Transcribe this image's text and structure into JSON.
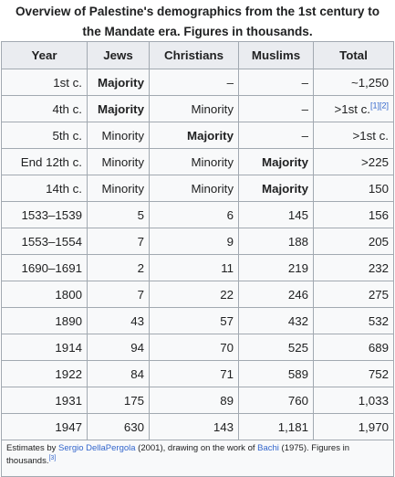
{
  "caption": {
    "line1": "Overview of Palestine's demographics from the 1st century to",
    "line2": "the Mandate era. Figures in thousands."
  },
  "headers": [
    "Year",
    "Jews",
    "Christians",
    "Muslims",
    "Total"
  ],
  "rows": [
    {
      "year": "1st c.",
      "jews": "Majority",
      "christians": "–",
      "muslims": "–",
      "total": "~1,250",
      "cite": ""
    },
    {
      "year": "4th c.",
      "jews": "Majority",
      "christians": "Minority",
      "muslims": "–",
      "total": ">1st c.",
      "cite": "[1][2]"
    },
    {
      "year": "5th c.",
      "jews": "Minority",
      "christians": "Majority",
      "muslims": "–",
      "total": ">1st c.",
      "cite": ""
    },
    {
      "year": "End 12th c.",
      "jews": "Minority",
      "christians": "Minority",
      "muslims": "Majority",
      "total": ">225",
      "cite": ""
    },
    {
      "year": "14th c.",
      "jews": "Minority",
      "christians": "Minority",
      "muslims": "Majority",
      "total": "150",
      "cite": ""
    },
    {
      "year": "1533–1539",
      "jews": "5",
      "christians": "6",
      "muslims": "145",
      "total": "156",
      "cite": ""
    },
    {
      "year": "1553–1554",
      "jews": "7",
      "christians": "9",
      "muslims": "188",
      "total": "205",
      "cite": ""
    },
    {
      "year": "1690–1691",
      "jews": "2",
      "christians": "11",
      "muslims": "219",
      "total": "232",
      "cite": ""
    },
    {
      "year": "1800",
      "jews": "7",
      "christians": "22",
      "muslims": "246",
      "total": "275",
      "cite": ""
    },
    {
      "year": "1890",
      "jews": "43",
      "christians": "57",
      "muslims": "432",
      "total": "532",
      "cite": ""
    },
    {
      "year": "1914",
      "jews": "94",
      "christians": "70",
      "muslims": "525",
      "total": "689",
      "cite": ""
    },
    {
      "year": "1922",
      "jews": "84",
      "christians": "71",
      "muslims": "589",
      "total": "752",
      "cite": ""
    },
    {
      "year": "1931",
      "jews": "175",
      "christians": "89",
      "muslims": "760",
      "total": "1,033",
      "cite": ""
    },
    {
      "year": "1947",
      "jews": "630",
      "christians": "143",
      "muslims": "1,181",
      "total": "1,970",
      "cite": ""
    }
  ],
  "footnote": {
    "prefix": "Estimates by ",
    "link1": "Sergio DellaPergola",
    "mid": " (2001), drawing on the work of ",
    "link2": "Bachi",
    "suffix": " (1975). Figures in thousands.",
    "cite": "[3]"
  },
  "colors": {
    "header_bg": "#eaecf0",
    "cell_bg": "#f8f9fa",
    "border": "#a2a9b1",
    "link": "#3366cc"
  }
}
